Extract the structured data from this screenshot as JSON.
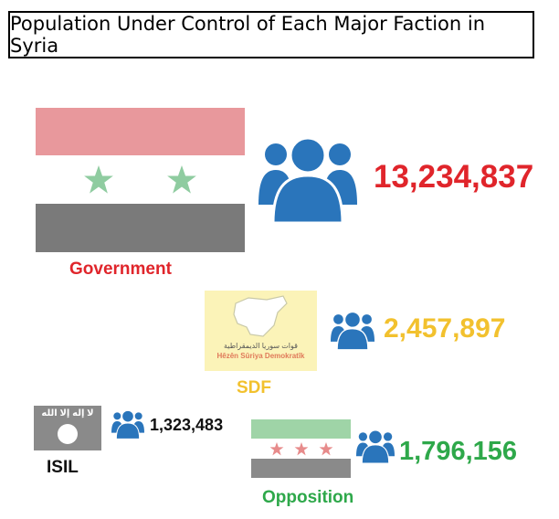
{
  "title": "Population Under Control of Each Major Faction in Syria",
  "factions": {
    "government": {
      "label": "Government",
      "population": "13,234,837",
      "label_color": "#e0252b",
      "pop_color": "#e0252b"
    },
    "sdf": {
      "label": "SDF",
      "population": "2,457,897",
      "label_color": "#f2c12e",
      "pop_color": "#f2c12e",
      "emblem_text_1": "قوات سوريا الديمقراطية",
      "emblem_text_2": "Hêzên Sûriya Demokratîk"
    },
    "isil": {
      "label": "ISIL",
      "population": "1,323,483",
      "label_color": "#111111",
      "pop_color": "#111111",
      "flag_text": "لا إله إلا الله"
    },
    "opposition": {
      "label": "Opposition",
      "population": "1,796,156",
      "label_color": "#2ea84a",
      "pop_color": "#2ea84a"
    }
  },
  "colors": {
    "people_icon": "#2a75bb",
    "gov_red": "#e8989c",
    "gov_black": "#7a7a7a",
    "gov_star": "#8fcca0",
    "opp_green": "#9fd4a7",
    "opp_black": "#8a8a8a",
    "opp_star": "#e78b8b"
  },
  "icons": {
    "population": "people-group-icon",
    "star": "star-icon"
  }
}
